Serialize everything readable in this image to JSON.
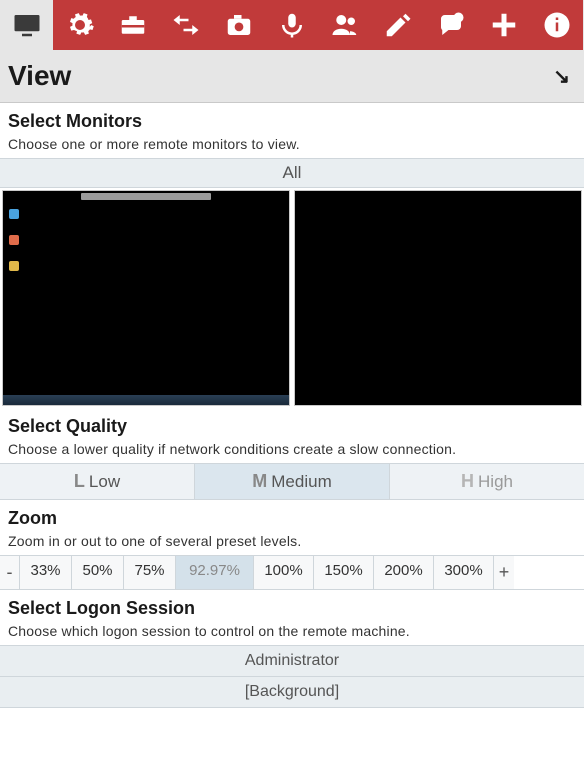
{
  "toolbar": {
    "icons": [
      "monitor",
      "gear",
      "toolbox",
      "swap",
      "camera",
      "mic",
      "people",
      "pencil",
      "chat",
      "plus",
      "info"
    ],
    "active_index": 0,
    "bg_color": "#c13a3a",
    "active_bg": "#e6e6e6",
    "icon_color": "#ffffff",
    "active_icon_color": "#3a3a3a"
  },
  "header": {
    "title": "View",
    "collapse_glyph": "↘"
  },
  "monitors_section": {
    "title": "Select Monitors",
    "subtitle": "Choose one or more remote monitors to view.",
    "all_label": "All",
    "thumbnails": [
      {
        "has_desktop": true
      },
      {
        "has_desktop": false
      }
    ]
  },
  "quality_section": {
    "title": "Select Quality",
    "subtitle": "Choose a lower quality if network conditions create a slow connection.",
    "options": [
      {
        "letter": "L",
        "label": "Low",
        "selected": false,
        "faded": false
      },
      {
        "letter": "M",
        "label": "Medium",
        "selected": true,
        "faded": false
      },
      {
        "letter": "H",
        "label": "High",
        "selected": false,
        "faded": true
      }
    ]
  },
  "zoom_section": {
    "title": "Zoom",
    "subtitle": "Zoom in or out to one of several preset levels.",
    "minus": "-",
    "plus": "+",
    "levels": [
      {
        "label": "33%",
        "width": 52,
        "selected": false
      },
      {
        "label": "50%",
        "width": 52,
        "selected": false
      },
      {
        "label": "75%",
        "width": 52,
        "selected": false
      },
      {
        "label": "92.97%",
        "width": 78,
        "selected": true
      },
      {
        "label": "100%",
        "width": 60,
        "selected": false
      },
      {
        "label": "150%",
        "width": 60,
        "selected": false
      },
      {
        "label": "200%",
        "width": 60,
        "selected": false
      },
      {
        "label": "300%",
        "width": 60,
        "selected": false
      }
    ]
  },
  "session_section": {
    "title": "Select Logon Session",
    "subtitle": "Choose which logon session to control on the remote machine.",
    "sessions": [
      {
        "label": "Administrator"
      },
      {
        "label": "[Background]"
      }
    ]
  }
}
